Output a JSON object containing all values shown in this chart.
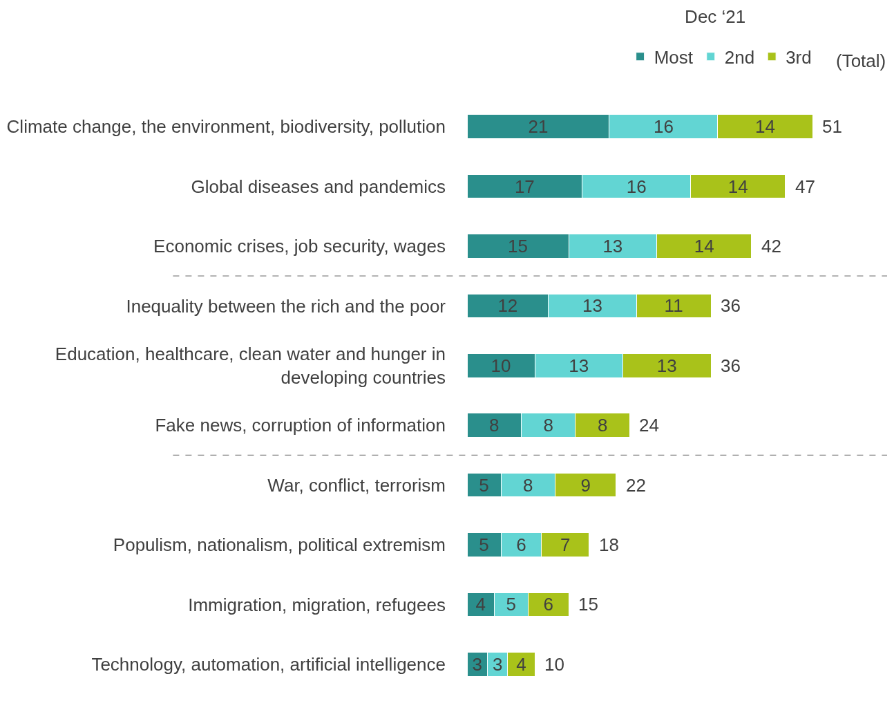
{
  "chart_data": {
    "type": "bar",
    "orientation": "horizontal",
    "stacked": true,
    "title": "Dec ‘21",
    "categories": [
      "Climate change, the environment, biodiversity, pollution",
      "Global diseases and pandemics",
      "Economic crises, job security, wages",
      "Inequality between the rich and the poor",
      "Education, healthcare, clean water and hunger in developing countries",
      "Fake news, corruption of information",
      "War, conflict, terrorism",
      "Populism, nationalism, political extremism",
      "Immigration, migration, refugees",
      "Technology, automation, artificial intelligence"
    ],
    "series": [
      {
        "name": "Most",
        "color": "#2a8f8c",
        "values": [
          21,
          17,
          15,
          12,
          10,
          8,
          5,
          5,
          4,
          3
        ]
      },
      {
        "name": "2nd",
        "color": "#62d5d3",
        "values": [
          16,
          16,
          13,
          13,
          13,
          8,
          8,
          6,
          5,
          3
        ]
      },
      {
        "name": "3rd",
        "color": "#a9c21a",
        "values": [
          14,
          14,
          14,
          11,
          13,
          8,
          9,
          7,
          6,
          4
        ]
      }
    ],
    "totals": [
      "51",
      "47",
      "42",
      "36",
      "36",
      "24",
      "22",
      "18",
      "15",
      "10"
    ],
    "annotations": [
      "(Total)"
    ],
    "data_labels": true,
    "legend": "top right",
    "tick_labels": "y",
    "xlim": [
      0,
      62
    ]
  }
}
